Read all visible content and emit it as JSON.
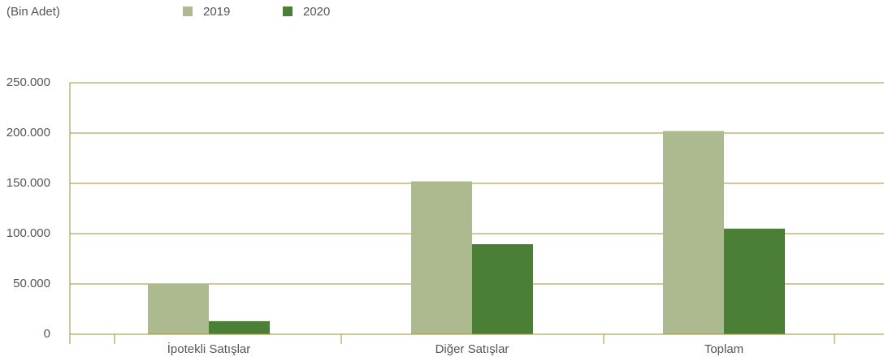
{
  "chart_data": {
    "type": "bar",
    "y_label": "(Bin Adet)",
    "categories": [
      "İpotekli Satışlar",
      "Diğer Satışlar",
      "Toplam"
    ],
    "series": [
      {
        "name": "2019",
        "color": "#adb98f",
        "values": [
          50000,
          152000,
          202000
        ]
      },
      {
        "name": "2020",
        "color": "#4a7f35",
        "values": [
          13000,
          89500,
          105000
        ]
      }
    ],
    "ylim": [
      0,
      250000
    ],
    "yticks": [
      0,
      {
        "value": 50000,
        "label": "50.000"
      },
      {
        "value": 100000,
        "label": "100.000"
      },
      {
        "value": 150000,
        "label": "150.000"
      },
      {
        "value": 200000,
        "label": "200.000"
      },
      {
        "value": 250000,
        "label": "250.000"
      }
    ],
    "grid": true,
    "legend": "top"
  }
}
